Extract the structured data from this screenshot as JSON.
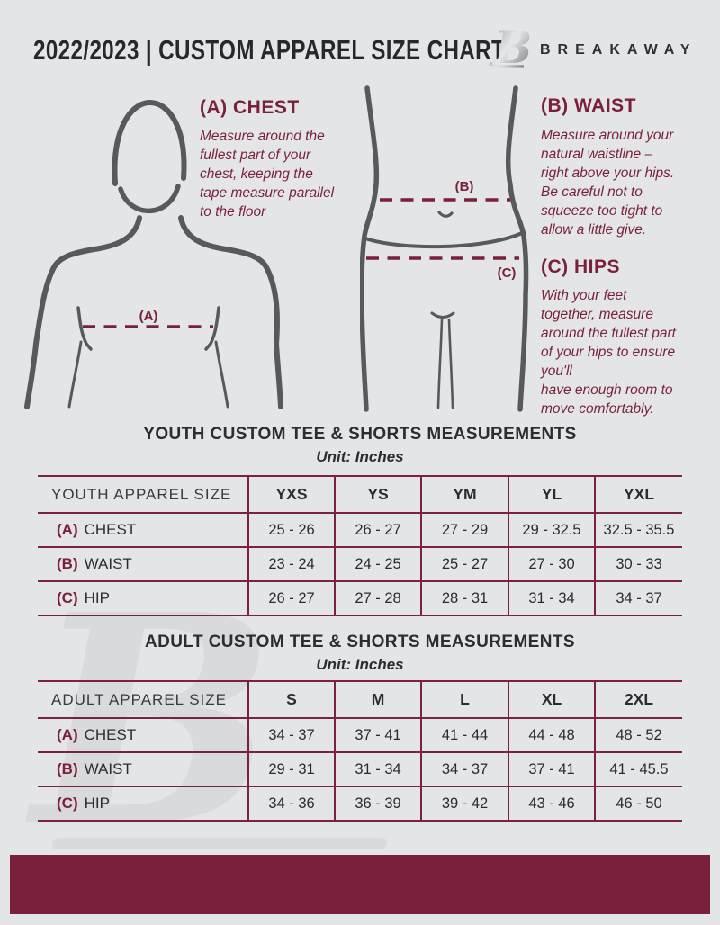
{
  "page": {
    "background_color": "#e4e5e7",
    "accent_color": "#7a1f3c",
    "figure_outline_color": "#58595c",
    "watermark_color": "#d9dadc"
  },
  "header": {
    "title": "2022/2023  |  CUSTOM APPAREL SIZE CHART",
    "brand": "BREAKAWAY",
    "logo_letter": "B"
  },
  "guide": {
    "chest": {
      "heading": "(A) CHEST",
      "marker": "(A)",
      "body": "Measure around the\nfullest part of your\nchest, keeping the\ntape measure parallel\nto the floor"
    },
    "waist": {
      "heading": "(B) WAIST",
      "marker": "(B)",
      "body": "Measure around your\nnatural waistline –\nright above your hips.\nBe careful not to\nsqueeze too tight to\nallow a little give."
    },
    "hips": {
      "heading": "(C) HIPS",
      "marker": "(C)",
      "body": "With your feet\ntogether, measure\naround the fullest part\nof your hips to ensure\nyou'll\nhave enough room to\nmove comfortably."
    }
  },
  "youth_table": {
    "title": "YOUTH CUSTOM TEE & SHORTS MEASUREMENTS",
    "subtitle": "Unit: Inches",
    "size_label": "YOUTH APPAREL SIZE",
    "columns": [
      "YXS",
      "YS",
      "YM",
      "YL",
      "YXL"
    ],
    "rows": [
      {
        "key": "(A)",
        "label": "CHEST",
        "values": [
          "25 - 26",
          "26 - 27",
          "27 - 29",
          "29 - 32.5",
          "32.5 - 35.5"
        ]
      },
      {
        "key": "(B)",
        "label": "WAIST",
        "values": [
          "23 - 24",
          "24 - 25",
          "25 - 27",
          "27 - 30",
          "30 - 33"
        ]
      },
      {
        "key": "(C)",
        "label": "HIP",
        "values": [
          "26 - 27",
          "27 - 28",
          "28 - 31",
          "31 - 34",
          "34 - 37"
        ]
      }
    ]
  },
  "adult_table": {
    "title": "ADULT CUSTOM TEE & SHORTS MEASUREMENTS",
    "subtitle": "Unit: Inches",
    "size_label": "ADULT APPAREL SIZE",
    "columns": [
      "S",
      "M",
      "L",
      "XL",
      "2XL"
    ],
    "rows": [
      {
        "key": "(A)",
        "label": "CHEST",
        "values": [
          "34 - 37",
          "37 - 41",
          "41 - 44",
          "44 - 48",
          "48 - 52"
        ]
      },
      {
        "key": "(B)",
        "label": "WAIST",
        "values": [
          "29 - 31",
          "31 - 34",
          "34 - 37",
          "37 - 41",
          "41 - 45.5"
        ]
      },
      {
        "key": "(C)",
        "label": "HIP",
        "values": [
          "34 - 36",
          "36 - 39",
          "39 - 42",
          "43 - 46",
          "46 - 50"
        ]
      }
    ]
  }
}
